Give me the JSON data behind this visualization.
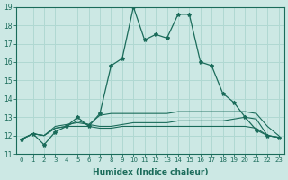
{
  "xlabel": "Humidex (Indice chaleur)",
  "xlim": [
    -0.5,
    23.5
  ],
  "ylim": [
    11,
    19
  ],
  "xticks": [
    0,
    1,
    2,
    3,
    4,
    5,
    6,
    7,
    8,
    9,
    10,
    11,
    12,
    13,
    14,
    15,
    16,
    17,
    18,
    19,
    20,
    21,
    22,
    23
  ],
  "yticks": [
    11,
    12,
    13,
    14,
    15,
    16,
    17,
    18,
    19
  ],
  "bg_color": "#cce8e4",
  "grid_color": "#b0d8d2",
  "line_color": "#1a6b5a",
  "s1": [
    11.8,
    12.1,
    11.5,
    12.2,
    12.5,
    13.0,
    12.5,
    13.2,
    15.8,
    16.2,
    19.0,
    17.2,
    17.5,
    17.3,
    18.6,
    18.6,
    16.0,
    15.8,
    14.3,
    13.8,
    13.0,
    12.3,
    12.0,
    11.9
  ],
  "s2": [
    11.8,
    12.1,
    12.0,
    12.5,
    12.6,
    12.7,
    12.6,
    12.5,
    12.5,
    12.6,
    12.7,
    12.7,
    12.7,
    12.7,
    12.8,
    12.8,
    12.8,
    12.8,
    12.8,
    12.9,
    13.0,
    12.9,
    12.0,
    11.9
  ],
  "s3": [
    11.8,
    12.1,
    12.0,
    12.4,
    12.5,
    12.5,
    12.5,
    12.4,
    12.4,
    12.5,
    12.5,
    12.5,
    12.5,
    12.5,
    12.5,
    12.5,
    12.5,
    12.5,
    12.5,
    12.5,
    12.5,
    12.4,
    12.0,
    11.9
  ],
  "s4": [
    11.8,
    12.1,
    12.0,
    12.4,
    12.5,
    12.8,
    12.6,
    13.1,
    13.2,
    13.2,
    13.2,
    13.2,
    13.2,
    13.2,
    13.3,
    13.3,
    13.3,
    13.3,
    13.3,
    13.3,
    13.3,
    13.2,
    12.5,
    12.0
  ]
}
